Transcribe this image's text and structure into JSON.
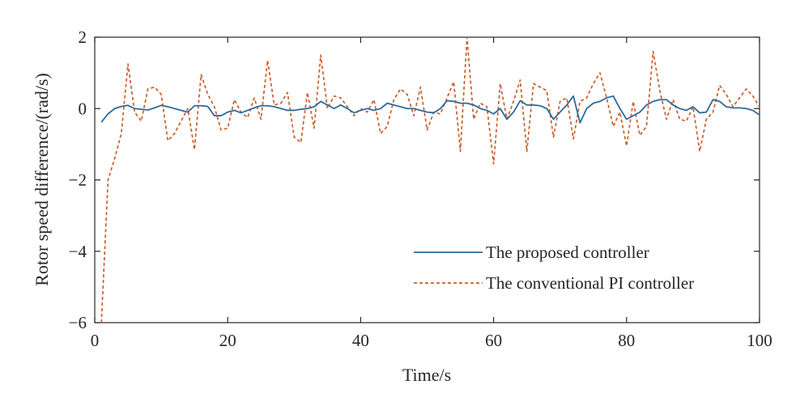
{
  "chart_data": {
    "type": "line",
    "title": "",
    "xlabel": "Time/s",
    "ylabel": "Rotor speed difference/(rad/s)",
    "xlim": [
      0,
      100
    ],
    "ylim": [
      -6,
      2
    ],
    "xticks": [
      0,
      20,
      40,
      60,
      80,
      100
    ],
    "xtick_labels": [
      "0",
      "20",
      "40",
      "60",
      "80",
      "100"
    ],
    "yticks": [
      -6,
      -4,
      -2,
      0,
      2
    ],
    "ytick_labels": [
      "−6",
      "−4",
      "−2",
      "0",
      "2"
    ],
    "grid": false,
    "legend_position": "bottom-right",
    "series": [
      {
        "name": "The proposed controller",
        "color": "#2f6a9a",
        "style": "solid",
        "points": [
          [
            1,
            -0.38
          ],
          [
            2,
            -0.15
          ],
          [
            3,
            0.0
          ],
          [
            4,
            0.06
          ],
          [
            5,
            0.09
          ],
          [
            6,
            0.0
          ],
          [
            7,
            -0.02
          ],
          [
            8,
            -0.04
          ],
          [
            9,
            0.02
          ],
          [
            10,
            0.09
          ],
          [
            11,
            0.05
          ],
          [
            12,
            0.0
          ],
          [
            13,
            -0.05
          ],
          [
            14,
            -0.1
          ],
          [
            15,
            0.08
          ],
          [
            16,
            0.08
          ],
          [
            17,
            0.06
          ],
          [
            18,
            -0.2
          ],
          [
            19,
            -0.2
          ],
          [
            20,
            -0.1
          ],
          [
            21,
            -0.05
          ],
          [
            22,
            -0.12
          ],
          [
            23,
            -0.05
          ],
          [
            24,
            0.02
          ],
          [
            25,
            0.08
          ],
          [
            26,
            0.08
          ],
          [
            27,
            0.05
          ],
          [
            28,
            0.0
          ],
          [
            29,
            -0.05
          ],
          [
            30,
            -0.05
          ],
          [
            31,
            -0.02
          ],
          [
            32,
            0.0
          ],
          [
            33,
            0.05
          ],
          [
            34,
            0.2
          ],
          [
            35,
            0.1
          ],
          [
            36,
            0.0
          ],
          [
            37,
            0.1
          ],
          [
            38,
            0.0
          ],
          [
            39,
            -0.12
          ],
          [
            40,
            -0.05
          ],
          [
            41,
            0.0
          ],
          [
            42,
            -0.05
          ],
          [
            43,
            0.0
          ],
          [
            44,
            0.15
          ],
          [
            45,
            0.1
          ],
          [
            46,
            0.05
          ],
          [
            47,
            0.0
          ],
          [
            48,
            0.0
          ],
          [
            49,
            -0.05
          ],
          [
            50,
            -0.1
          ],
          [
            51,
            -0.12
          ],
          [
            52,
            0.0
          ],
          [
            53,
            0.22
          ],
          [
            54,
            0.2
          ],
          [
            55,
            0.15
          ],
          [
            56,
            0.15
          ],
          [
            57,
            0.1
          ],
          [
            58,
            0.0
          ],
          [
            59,
            -0.05
          ],
          [
            60,
            -0.15
          ],
          [
            61,
            0.0
          ],
          [
            62,
            -0.3
          ],
          [
            63,
            -0.1
          ],
          [
            64,
            0.22
          ],
          [
            65,
            0.1
          ],
          [
            66,
            0.1
          ],
          [
            67,
            0.08
          ],
          [
            68,
            0.0
          ],
          [
            69,
            -0.3
          ],
          [
            70,
            -0.1
          ],
          [
            71,
            0.1
          ],
          [
            72,
            0.35
          ],
          [
            73,
            -0.4
          ],
          [
            74,
            0.0
          ],
          [
            75,
            0.15
          ],
          [
            76,
            0.2
          ],
          [
            77,
            0.3
          ],
          [
            78,
            0.35
          ],
          [
            79,
            0.0
          ],
          [
            80,
            -0.3
          ],
          [
            81,
            -0.2
          ],
          [
            82,
            -0.1
          ],
          [
            83,
            0.1
          ],
          [
            84,
            0.2
          ],
          [
            85,
            0.25
          ],
          [
            86,
            0.25
          ],
          [
            87,
            0.1
          ],
          [
            88,
            0.0
          ],
          [
            89,
            -0.05
          ],
          [
            90,
            0.05
          ],
          [
            91,
            -0.12
          ],
          [
            92,
            -0.1
          ],
          [
            93,
            0.25
          ],
          [
            94,
            0.2
          ],
          [
            95,
            0.05
          ],
          [
            96,
            0.02
          ],
          [
            97,
            0.02
          ],
          [
            98,
            0.0
          ],
          [
            99,
            -0.05
          ],
          [
            100,
            -0.18
          ]
        ]
      },
      {
        "name": "The conventional PI controller",
        "color": "#c8602e",
        "style": "dashed",
        "points": [
          [
            1,
            -6.0
          ],
          [
            2,
            -2.0
          ],
          [
            3,
            -1.4
          ],
          [
            4,
            -0.7
          ],
          [
            5,
            1.25
          ],
          [
            6,
            -0.1
          ],
          [
            7,
            -0.35
          ],
          [
            8,
            0.55
          ],
          [
            9,
            0.6
          ],
          [
            10,
            0.4
          ],
          [
            11,
            -0.9
          ],
          [
            12,
            -0.7
          ],
          [
            13,
            -0.35
          ],
          [
            14,
            0.0
          ],
          [
            15,
            -1.15
          ],
          [
            16,
            0.95
          ],
          [
            17,
            0.4
          ],
          [
            18,
            0.05
          ],
          [
            19,
            -0.6
          ],
          [
            20,
            -0.55
          ],
          [
            21,
            0.25
          ],
          [
            22,
            -0.1
          ],
          [
            23,
            -0.25
          ],
          [
            24,
            0.3
          ],
          [
            25,
            -0.3
          ],
          [
            26,
            1.35
          ],
          [
            27,
            0.1
          ],
          [
            28,
            0.15
          ],
          [
            29,
            0.45
          ],
          [
            30,
            -0.8
          ],
          [
            31,
            -0.95
          ],
          [
            32,
            0.45
          ],
          [
            33,
            -0.55
          ],
          [
            34,
            1.5
          ],
          [
            35,
            0.0
          ],
          [
            36,
            0.35
          ],
          [
            37,
            0.3
          ],
          [
            38,
            0.05
          ],
          [
            39,
            -0.2
          ],
          [
            40,
            0.0
          ],
          [
            41,
            -0.1
          ],
          [
            42,
            0.25
          ],
          [
            43,
            -0.7
          ],
          [
            44,
            -0.5
          ],
          [
            45,
            0.25
          ],
          [
            46,
            0.55
          ],
          [
            47,
            0.4
          ],
          [
            48,
            -0.2
          ],
          [
            49,
            0.6
          ],
          [
            50,
            -0.6
          ],
          [
            51,
            -0.1
          ],
          [
            52,
            -0.15
          ],
          [
            53,
            0.3
          ],
          [
            54,
            0.75
          ],
          [
            55,
            -1.2
          ],
          [
            56,
            2.0
          ],
          [
            57,
            -0.3
          ],
          [
            58,
            0.15
          ],
          [
            59,
            0.05
          ],
          [
            60,
            -1.55
          ],
          [
            61,
            0.7
          ],
          [
            62,
            -0.3
          ],
          [
            63,
            0.2
          ],
          [
            64,
            0.8
          ],
          [
            65,
            -1.2
          ],
          [
            66,
            0.7
          ],
          [
            67,
            0.6
          ],
          [
            68,
            0.5
          ],
          [
            69,
            -0.8
          ],
          [
            70,
            0.2
          ],
          [
            71,
            0.3
          ],
          [
            72,
            -0.85
          ],
          [
            73,
            0.2
          ],
          [
            74,
            0.3
          ],
          [
            75,
            0.7
          ],
          [
            76,
            1.0
          ],
          [
            77,
            0.3
          ],
          [
            78,
            -0.5
          ],
          [
            79,
            -0.1
          ],
          [
            80,
            -1.05
          ],
          [
            81,
            0.2
          ],
          [
            82,
            -0.75
          ],
          [
            83,
            -0.5
          ],
          [
            84,
            1.6
          ],
          [
            85,
            0.5
          ],
          [
            86,
            -0.3
          ],
          [
            87,
            0.25
          ],
          [
            88,
            -0.3
          ],
          [
            89,
            -0.35
          ],
          [
            90,
            0.05
          ],
          [
            91,
            -1.2
          ],
          [
            92,
            -0.3
          ],
          [
            93,
            -0.1
          ],
          [
            94,
            0.65
          ],
          [
            95,
            0.4
          ],
          [
            96,
            0.05
          ],
          [
            97,
            0.3
          ],
          [
            98,
            0.55
          ],
          [
            99,
            0.35
          ],
          [
            100,
            0.05
          ]
        ]
      }
    ]
  }
}
